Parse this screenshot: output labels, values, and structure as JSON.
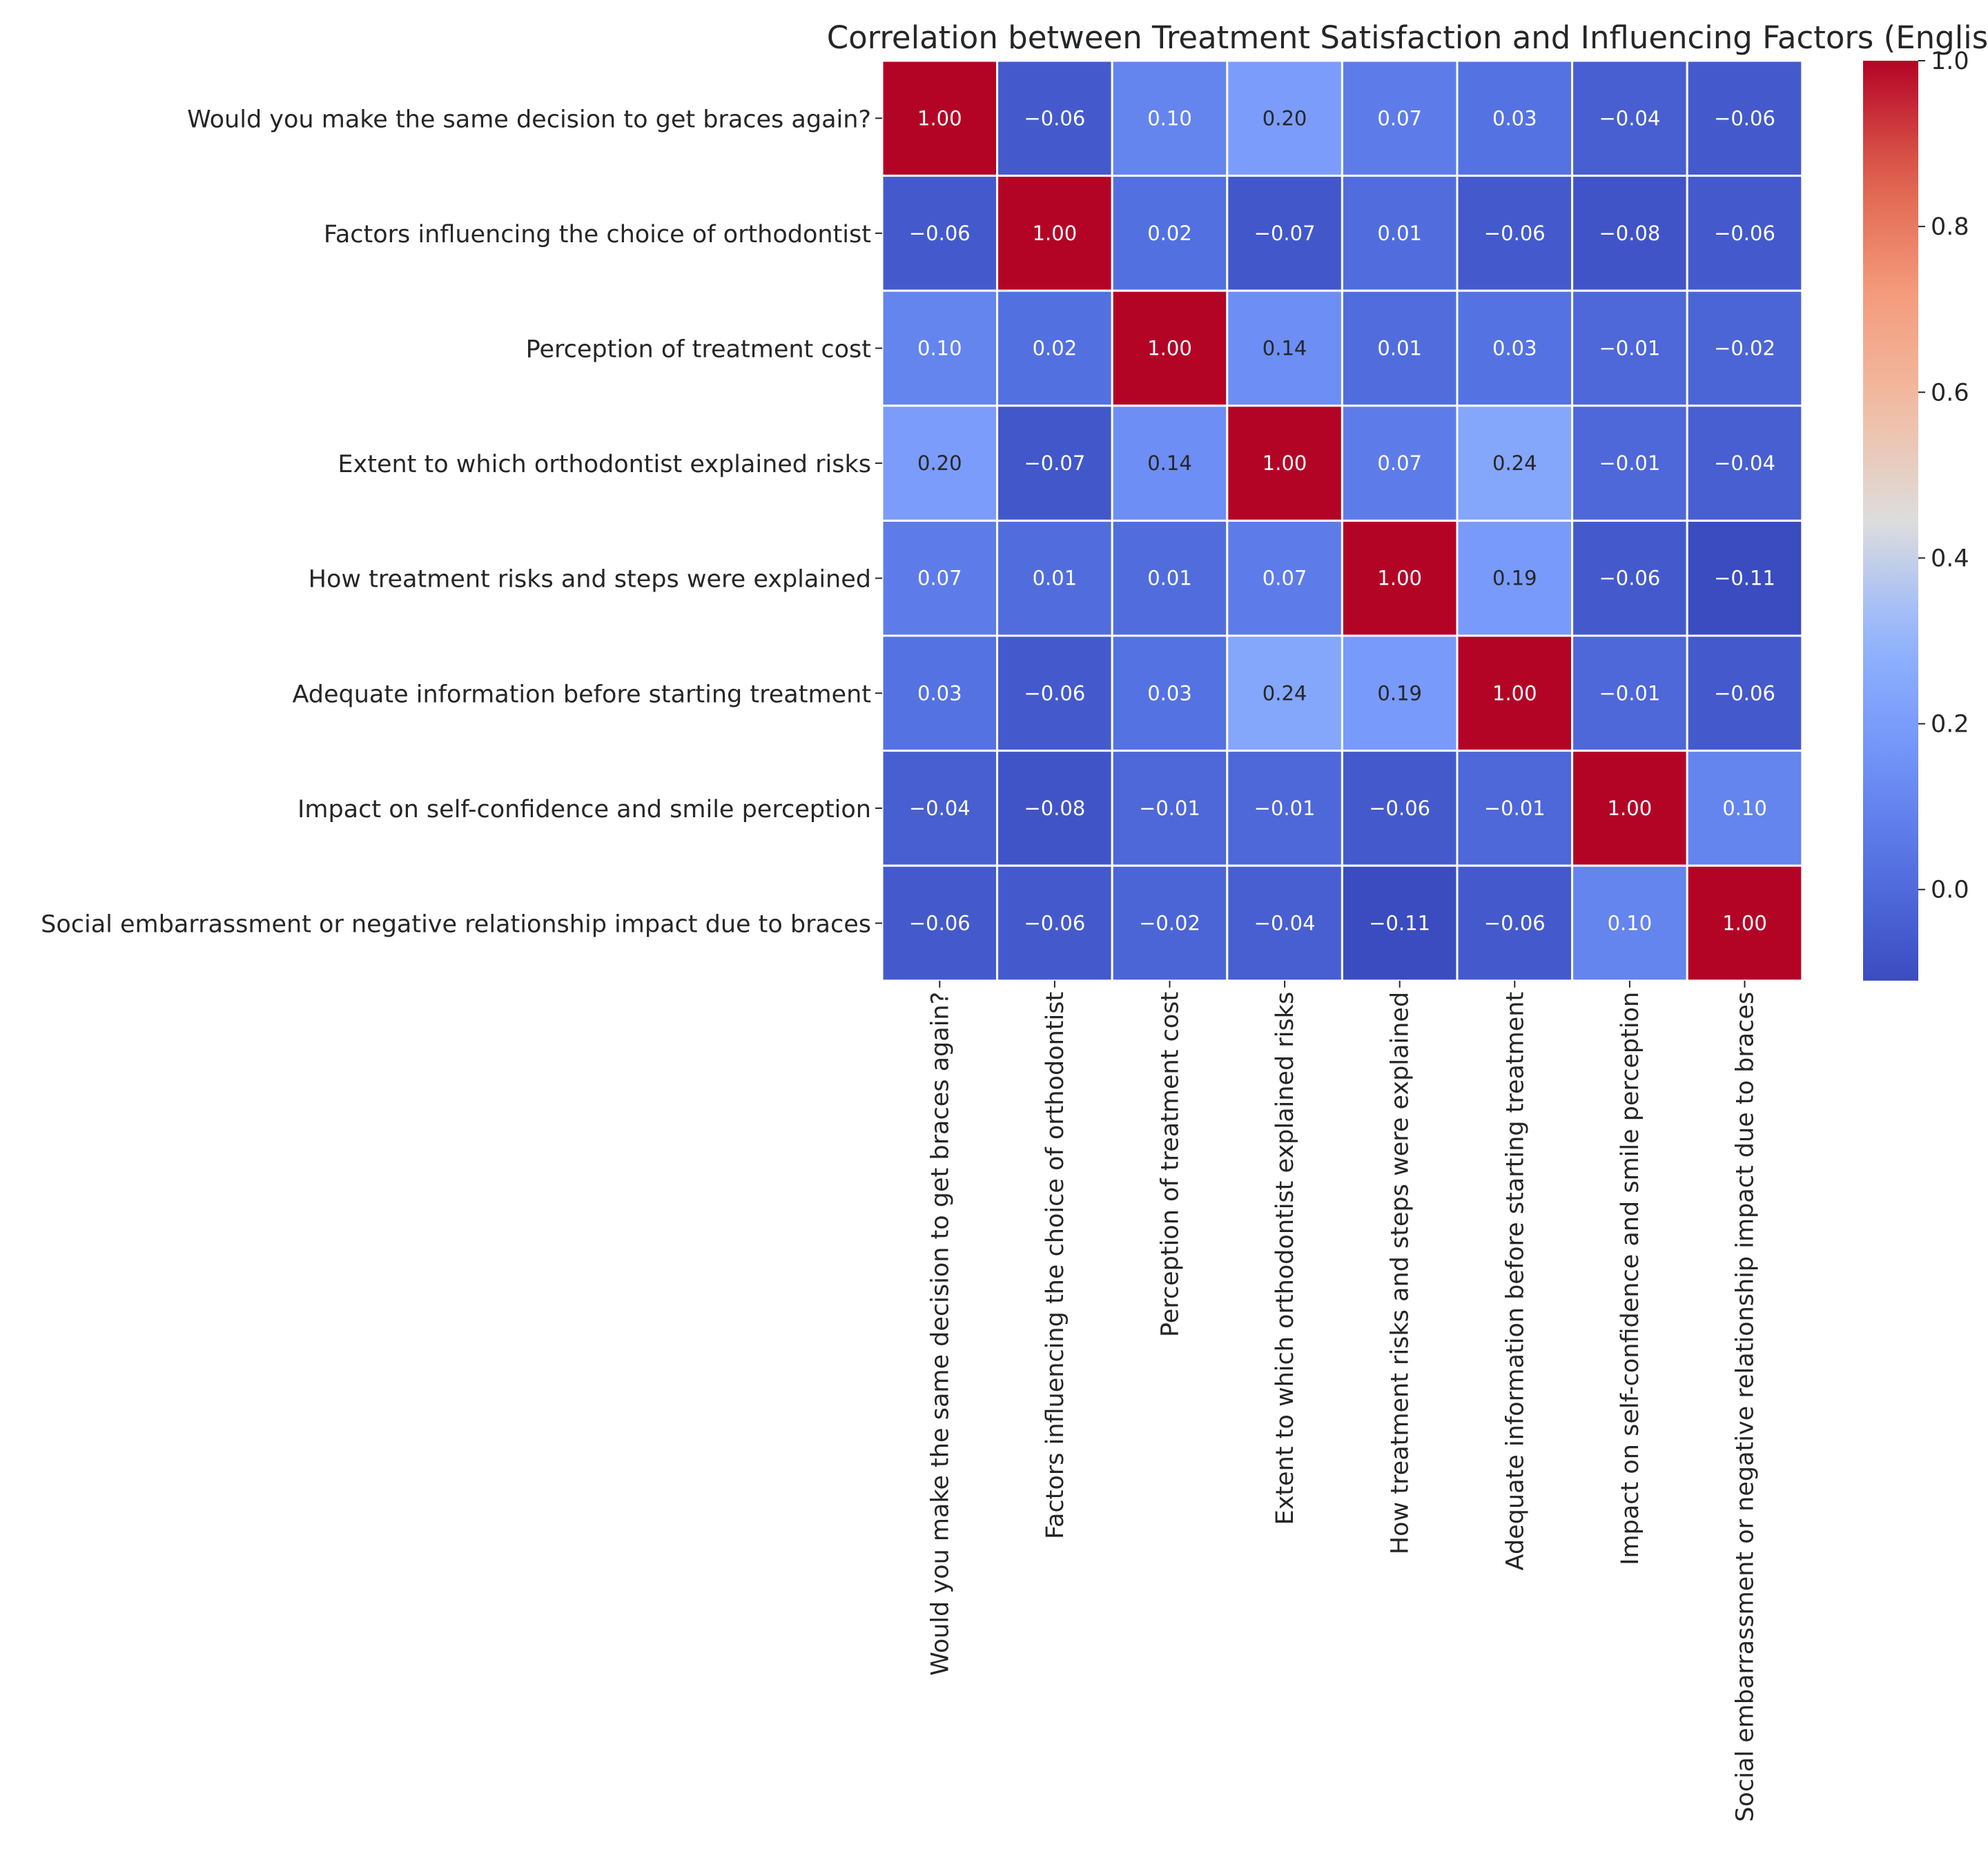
{
  "chart_data": {
    "type": "heatmap",
    "title": "Correlation between Treatment Satisfaction and Influencing Factors (English)",
    "rows": [
      "Would you make the same decision to get braces again?",
      "Factors influencing the choice of orthodontist",
      "Perception of treatment cost",
      "Extent to which orthodontist explained risks",
      "How treatment risks and steps were explained",
      "Adequate information before starting treatment",
      "Impact on self-confidence and smile perception",
      "Social embarrassment or negative relationship impact due to braces"
    ],
    "columns": [
      "Would you make the same decision to get braces again?",
      "Factors influencing the choice of orthodontist",
      "Perception of treatment cost",
      "Extent to which orthodontist explained risks",
      "How treatment risks and steps were explained",
      "Adequate information before starting treatment",
      "Impact on self-confidence and smile perception",
      "Social embarrassment or negative relationship impact due to braces"
    ],
    "values": [
      [
        1.0,
        -0.06,
        0.1,
        0.2,
        0.07,
        0.03,
        -0.04,
        -0.06
      ],
      [
        -0.06,
        1.0,
        0.02,
        -0.07,
        0.01,
        -0.06,
        -0.08,
        -0.06
      ],
      [
        0.1,
        0.02,
        1.0,
        0.14,
        0.01,
        0.03,
        -0.01,
        -0.02
      ],
      [
        0.2,
        -0.07,
        0.14,
        1.0,
        0.07,
        0.24,
        -0.01,
        -0.04
      ],
      [
        0.07,
        0.01,
        0.01,
        0.07,
        1.0,
        0.19,
        -0.06,
        -0.11
      ],
      [
        0.03,
        -0.06,
        0.03,
        0.24,
        0.19,
        1.0,
        -0.01,
        -0.06
      ],
      [
        -0.04,
        -0.08,
        -0.01,
        -0.01,
        -0.06,
        -0.01,
        1.0,
        0.1
      ],
      [
        -0.06,
        -0.06,
        -0.02,
        -0.04,
        -0.11,
        -0.06,
        0.1,
        1.0
      ]
    ],
    "annotations_format": "0.00",
    "colormap": "coolwarm",
    "color_range": [
      -0.11,
      1.0
    ],
    "colorbar": {
      "ticks": [
        "0.0",
        "0.2",
        "0.4",
        "0.6",
        "0.8",
        "1.0"
      ],
      "tick_values": [
        0.0,
        0.2,
        0.4,
        0.6,
        0.8,
        1.0
      ]
    },
    "grid_line_color": "#ffffff"
  }
}
